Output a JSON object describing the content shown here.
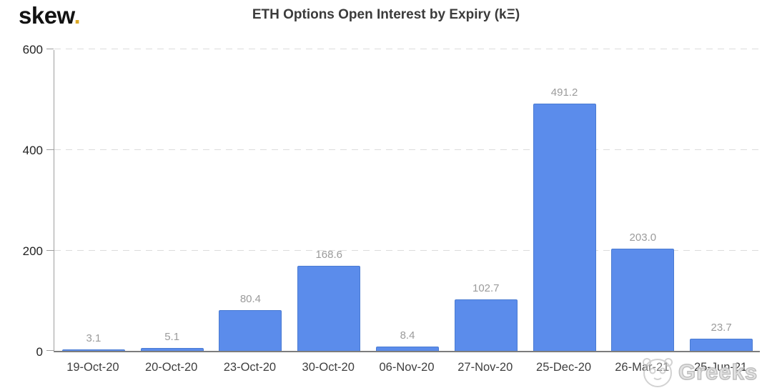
{
  "logo": {
    "text": "skew",
    "dot": ".",
    "dot_color": "#dca928"
  },
  "header": {
    "title": "ETH Options Open Interest by Expiry (kΞ)"
  },
  "watermark": {
    "text": "Greeks",
    "icon": "mascot-face-icon"
  },
  "chart_data": {
    "type": "bar",
    "title": "ETH Options Open Interest by Expiry (kΞ)",
    "categories": [
      "19-Oct-20",
      "20-Oct-20",
      "23-Oct-20",
      "30-Oct-20",
      "06-Nov-20",
      "27-Nov-20",
      "25-Dec-20",
      "26-Mar-21",
      "25-Jun-21"
    ],
    "values": [
      3.1,
      5.1,
      80.4,
      168.6,
      8.4,
      102.7,
      491.2,
      203.0,
      23.7
    ],
    "value_labels": [
      "3.1",
      "5.1",
      "80.4",
      "168.6",
      "8.4",
      "102.7",
      "491.2",
      "203.0",
      "23.7"
    ],
    "xlabel": "",
    "ylabel": "",
    "ylim": [
      0,
      600
    ],
    "yticks": [
      0,
      200,
      400,
      600
    ],
    "grid": "horizontal-dashed",
    "legend": "none",
    "bar_color": "#5b8ceb",
    "bar_border_color": "#4a7bd2",
    "gridline_color": "#dcdcdc",
    "value_label_color": "#9b9b9b",
    "axis_label_color": "#222222"
  }
}
